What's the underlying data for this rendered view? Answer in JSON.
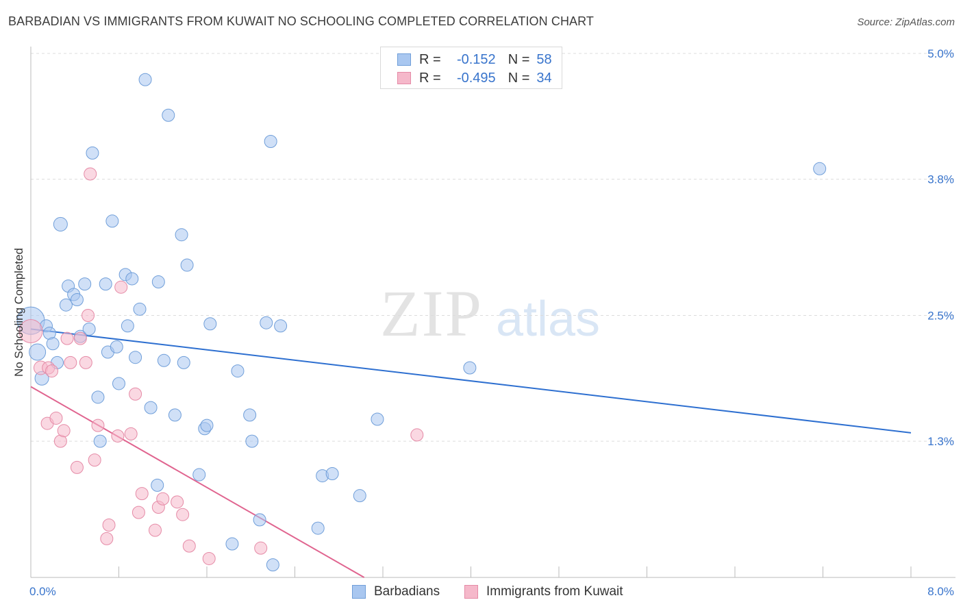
{
  "header": {
    "title": "BARBADIAN VS IMMIGRANTS FROM KUWAIT NO SCHOOLING COMPLETED CORRELATION CHART",
    "source": "Source: ZipAtlas.com"
  },
  "watermark": {
    "zip": "ZIP",
    "atlas": "atlas"
  },
  "legend": {
    "rows": [
      {
        "r_label": "R =",
        "r_value": "-0.152",
        "n_label": "N =",
        "n_value": "58",
        "color": "#a9c7f0"
      },
      {
        "r_label": "R =",
        "r_value": "-0.495",
        "n_label": "N =",
        "n_value": "34",
        "color": "#f5b8ca"
      }
    ]
  },
  "chart_data": {
    "type": "scatter",
    "title": "BARBADIAN VS IMMIGRANTS FROM KUWAIT NO SCHOOLING COMPLETED CORRELATION CHART",
    "xlabel": "",
    "ylabel": "No Schooling Completed",
    "xlim": [
      0,
      8.0
    ],
    "ylim": [
      0,
      5.0
    ],
    "x_tick_labels": [
      "0.0%",
      "8.0%"
    ],
    "y_ticks": [
      1.3,
      2.5,
      3.8,
      5.0
    ],
    "y_tick_labels": [
      "1.3%",
      "2.5%",
      "3.8%",
      "5.0%"
    ],
    "grid": true,
    "series": [
      {
        "name": "Barbadians",
        "color": "#a9c7f0",
        "stroke": "#6f9ed9",
        "trend_color": "#2d6fd0",
        "trend": {
          "x": [
            0.0,
            8.0
          ],
          "y": [
            2.37,
            1.38
          ]
        },
        "points": [
          [
            0.0,
            2.45,
            20
          ],
          [
            0.06,
            2.15,
            12
          ],
          [
            0.1,
            1.9,
            10
          ],
          [
            0.14,
            2.4,
            9
          ],
          [
            0.17,
            2.33,
            9
          ],
          [
            0.2,
            2.23,
            9
          ],
          [
            0.24,
            2.05,
            9
          ],
          [
            0.27,
            3.37,
            10
          ],
          [
            0.32,
            2.6,
            9
          ],
          [
            0.34,
            2.78,
            9
          ],
          [
            0.39,
            2.7,
            9
          ],
          [
            0.42,
            2.65,
            9
          ],
          [
            0.45,
            2.3,
            9
          ],
          [
            0.49,
            2.8,
            9
          ],
          [
            0.53,
            2.37,
            9
          ],
          [
            0.56,
            4.05,
            9
          ],
          [
            0.61,
            1.72,
            9
          ],
          [
            0.63,
            1.3,
            9
          ],
          [
            0.68,
            2.8,
            9
          ],
          [
            0.7,
            2.15,
            9
          ],
          [
            0.74,
            3.4,
            9
          ],
          [
            0.78,
            2.2,
            9
          ],
          [
            0.8,
            1.85,
            9
          ],
          [
            0.86,
            2.89,
            9
          ],
          [
            0.88,
            2.4,
            9
          ],
          [
            0.92,
            2.85,
            9
          ],
          [
            0.95,
            2.1,
            9
          ],
          [
            0.99,
            2.56,
            9
          ],
          [
            1.04,
            4.75,
            9
          ],
          [
            1.09,
            1.62,
            9
          ],
          [
            1.15,
            0.88,
            9
          ],
          [
            1.16,
            2.82,
            9
          ],
          [
            1.21,
            2.07,
            9
          ],
          [
            1.25,
            4.41,
            9
          ],
          [
            1.31,
            1.55,
            9
          ],
          [
            1.37,
            3.27,
            9
          ],
          [
            1.39,
            2.05,
            9
          ],
          [
            1.42,
            2.98,
            9
          ],
          [
            1.53,
            0.98,
            9
          ],
          [
            1.58,
            1.42,
            9
          ],
          [
            1.6,
            1.45,
            9
          ],
          [
            1.63,
            2.42,
            9
          ],
          [
            1.83,
            0.32,
            9
          ],
          [
            1.88,
            1.97,
            9
          ],
          [
            1.99,
            1.55,
            9
          ],
          [
            2.01,
            1.3,
            9
          ],
          [
            2.08,
            0.55,
            9
          ],
          [
            2.14,
            2.43,
            9
          ],
          [
            2.18,
            4.16,
            9
          ],
          [
            2.2,
            0.12,
            9
          ],
          [
            2.27,
            2.4,
            9
          ],
          [
            2.61,
            0.47,
            9
          ],
          [
            2.65,
            0.97,
            9
          ],
          [
            2.74,
            0.99,
            9
          ],
          [
            2.99,
            0.78,
            9
          ],
          [
            3.15,
            1.51,
            9
          ],
          [
            3.99,
            2.0,
            9
          ],
          [
            7.17,
            3.9,
            9
          ]
        ]
      },
      {
        "name": "Immigrants from Kuwait",
        "color": "#f5b8ca",
        "stroke": "#e58aa6",
        "trend_color": "#e0648f",
        "trend": {
          "x": [
            0.0,
            3.03
          ],
          "y": [
            1.82,
            0.0
          ]
        },
        "points": [
          [
            0.0,
            2.35,
            17
          ],
          [
            0.09,
            2.0,
            10
          ],
          [
            0.16,
            2.0,
            9
          ],
          [
            0.19,
            1.97,
            9
          ],
          [
            0.15,
            1.47,
            9
          ],
          [
            0.23,
            1.52,
            9
          ],
          [
            0.27,
            1.3,
            9
          ],
          [
            0.3,
            1.4,
            9
          ],
          [
            0.33,
            2.28,
            9
          ],
          [
            0.36,
            2.05,
            9
          ],
          [
            0.42,
            1.05,
            9
          ],
          [
            0.45,
            2.28,
            9
          ],
          [
            0.5,
            2.05,
            9
          ],
          [
            0.52,
            2.5,
            9
          ],
          [
            0.54,
            3.85,
            9
          ],
          [
            0.58,
            1.12,
            9
          ],
          [
            0.61,
            1.45,
            9
          ],
          [
            0.69,
            0.37,
            9
          ],
          [
            0.71,
            0.5,
            9
          ],
          [
            0.79,
            1.35,
            9
          ],
          [
            0.82,
            2.77,
            9
          ],
          [
            0.91,
            1.37,
            9
          ],
          [
            0.95,
            1.75,
            9
          ],
          [
            0.98,
            0.62,
            9
          ],
          [
            1.01,
            0.8,
            9
          ],
          [
            1.13,
            0.45,
            9
          ],
          [
            1.16,
            0.67,
            9
          ],
          [
            1.2,
            0.75,
            9
          ],
          [
            1.33,
            0.72,
            9
          ],
          [
            1.38,
            0.6,
            9
          ],
          [
            1.44,
            0.3,
            9
          ],
          [
            1.62,
            0.18,
            9
          ],
          [
            2.09,
            0.28,
            9
          ],
          [
            3.51,
            1.36,
            9
          ]
        ]
      }
    ]
  }
}
